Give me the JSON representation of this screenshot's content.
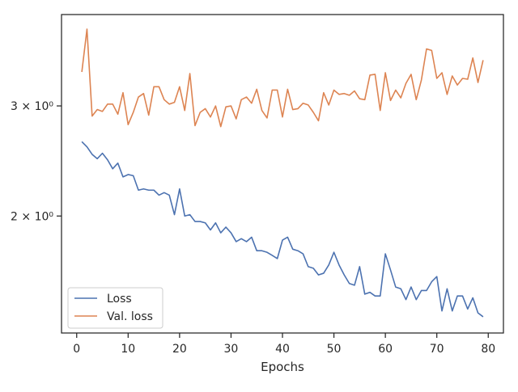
{
  "chart_data": {
    "type": "line",
    "xlabel": "Epochs",
    "ylabel": "",
    "yscale": "log",
    "xlim": [
      -2.95,
      82.95
    ],
    "ylim": [
      1.3,
      4.2
    ],
    "grid": false,
    "legend": "lower-left",
    "x_ticks": [
      0,
      10,
      20,
      30,
      40,
      50,
      60,
      70,
      80
    ],
    "y_ticks": [
      {
        "value": 2,
        "label": "2 × 10⁰"
      },
      {
        "value": 3,
        "label": "3 × 10⁰"
      }
    ],
    "series": [
      {
        "name": "Loss",
        "color": "#4c72b0",
        "x": [
          1,
          2,
          3,
          4,
          5,
          6,
          7,
          8,
          9,
          10,
          11,
          12,
          13,
          14,
          15,
          16,
          17,
          18,
          19,
          20,
          21,
          22,
          23,
          24,
          25,
          26,
          27,
          28,
          29,
          30,
          31,
          32,
          33,
          34,
          35,
          36,
          37,
          38,
          39,
          40,
          41,
          42,
          43,
          44,
          45,
          46,
          47,
          48,
          49,
          50,
          51,
          52,
          53,
          54,
          55,
          56,
          57,
          58,
          59,
          60,
          61,
          62,
          63,
          64,
          65,
          66,
          67,
          68,
          69,
          70,
          71,
          72,
          73,
          74,
          75,
          76,
          77,
          78,
          79
        ],
        "values": [
          2.63,
          2.58,
          2.51,
          2.47,
          2.52,
          2.46,
          2.38,
          2.43,
          2.31,
          2.33,
          2.32,
          2.2,
          2.21,
          2.2,
          2.2,
          2.16,
          2.18,
          2.16,
          2.01,
          2.21,
          2.0,
          2.01,
          1.96,
          1.96,
          1.95,
          1.9,
          1.95,
          1.88,
          1.92,
          1.88,
          1.82,
          1.84,
          1.82,
          1.85,
          1.76,
          1.76,
          1.75,
          1.73,
          1.71,
          1.83,
          1.85,
          1.77,
          1.76,
          1.74,
          1.66,
          1.65,
          1.61,
          1.62,
          1.67,
          1.75,
          1.67,
          1.61,
          1.56,
          1.55,
          1.66,
          1.5,
          1.51,
          1.49,
          1.49,
          1.74,
          1.64,
          1.54,
          1.53,
          1.47,
          1.54,
          1.47,
          1.52,
          1.52,
          1.57,
          1.6,
          1.41,
          1.53,
          1.41,
          1.49,
          1.49,
          1.42,
          1.48,
          1.4,
          1.38
        ]
      },
      {
        "name": "Val. loss",
        "color": "#dd8452",
        "x": [
          1,
          2,
          3,
          4,
          5,
          6,
          7,
          8,
          9,
          10,
          11,
          12,
          13,
          14,
          15,
          16,
          17,
          18,
          19,
          20,
          21,
          22,
          23,
          24,
          25,
          26,
          27,
          28,
          29,
          30,
          31,
          32,
          33,
          34,
          35,
          36,
          37,
          38,
          39,
          40,
          41,
          42,
          43,
          44,
          45,
          46,
          47,
          48,
          49,
          50,
          51,
          52,
          53,
          54,
          55,
          56,
          57,
          58,
          59,
          60,
          61,
          62,
          63,
          64,
          65,
          66,
          67,
          68,
          69,
          70,
          71,
          72,
          73,
          74,
          75,
          76,
          77,
          78,
          79
        ],
        "values": [
          3.4,
          3.98,
          2.89,
          2.96,
          2.94,
          3.02,
          3.02,
          2.91,
          3.15,
          2.8,
          2.93,
          3.1,
          3.14,
          2.9,
          3.22,
          3.22,
          3.07,
          3.02,
          3.04,
          3.22,
          2.95,
          3.38,
          2.79,
          2.93,
          2.97,
          2.88,
          3.0,
          2.78,
          2.99,
          3.0,
          2.86,
          3.07,
          3.1,
          3.03,
          3.19,
          2.95,
          2.87,
          3.18,
          3.18,
          2.88,
          3.19,
          2.96,
          2.97,
          3.03,
          3.01,
          2.93,
          2.84,
          3.15,
          3.01,
          3.18,
          3.13,
          3.14,
          3.12,
          3.17,
          3.08,
          3.07,
          3.36,
          3.37,
          2.95,
          3.39,
          3.06,
          3.18,
          3.09,
          3.26,
          3.37,
          3.07,
          3.3,
          3.7,
          3.68,
          3.32,
          3.39,
          3.13,
          3.35,
          3.24,
          3.32,
          3.31,
          3.58,
          3.27,
          3.55
        ]
      }
    ]
  }
}
